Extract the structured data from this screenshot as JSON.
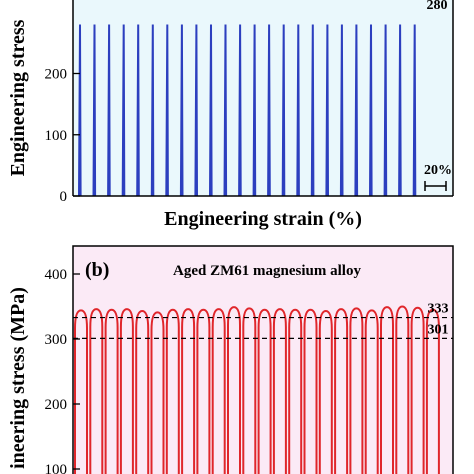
{
  "chart_data": [
    {
      "type": "line",
      "panel_label": "",
      "title": "",
      "xlabel": "Engineering strain (%)",
      "ylabel": "Engineering stress",
      "ylim": [
        0,
        320
      ],
      "yticks": [
        0,
        100,
        200
      ],
      "grid": false,
      "background": "#eaf8fc",
      "line_color": "#2c3fbf",
      "series": [
        {
          "cycles": 24,
          "peak_stress": 280,
          "valley_stress": 0
        }
      ],
      "annotations": {
        "level_value": "280",
        "strain_scale": "20%"
      }
    },
    {
      "type": "line",
      "panel_label": "(b)",
      "title": "Aged ZM61 magnesium alloy",
      "xlabel": "",
      "ylabel": "ineering stress (MPa)",
      "ylim": [
        100,
        440
      ],
      "yticks": [
        100,
        200,
        300,
        400
      ],
      "grid": false,
      "background": "#fbeaf6",
      "line_color": "#e0262b",
      "series": [
        {
          "cycles": 24,
          "peak_stress": [
            344,
            346,
            345,
            346,
            343,
            341,
            345,
            346,
            345,
            346,
            349,
            347,
            345,
            346,
            345,
            345,
            343,
            346,
            347,
            344,
            349,
            350,
            348,
            345
          ],
          "valley_stress": 100
        }
      ],
      "annotations": {
        "level_upper": 333,
        "level_lower": 301,
        "level_upper_label": "333",
        "level_lower_label": "301"
      }
    }
  ]
}
